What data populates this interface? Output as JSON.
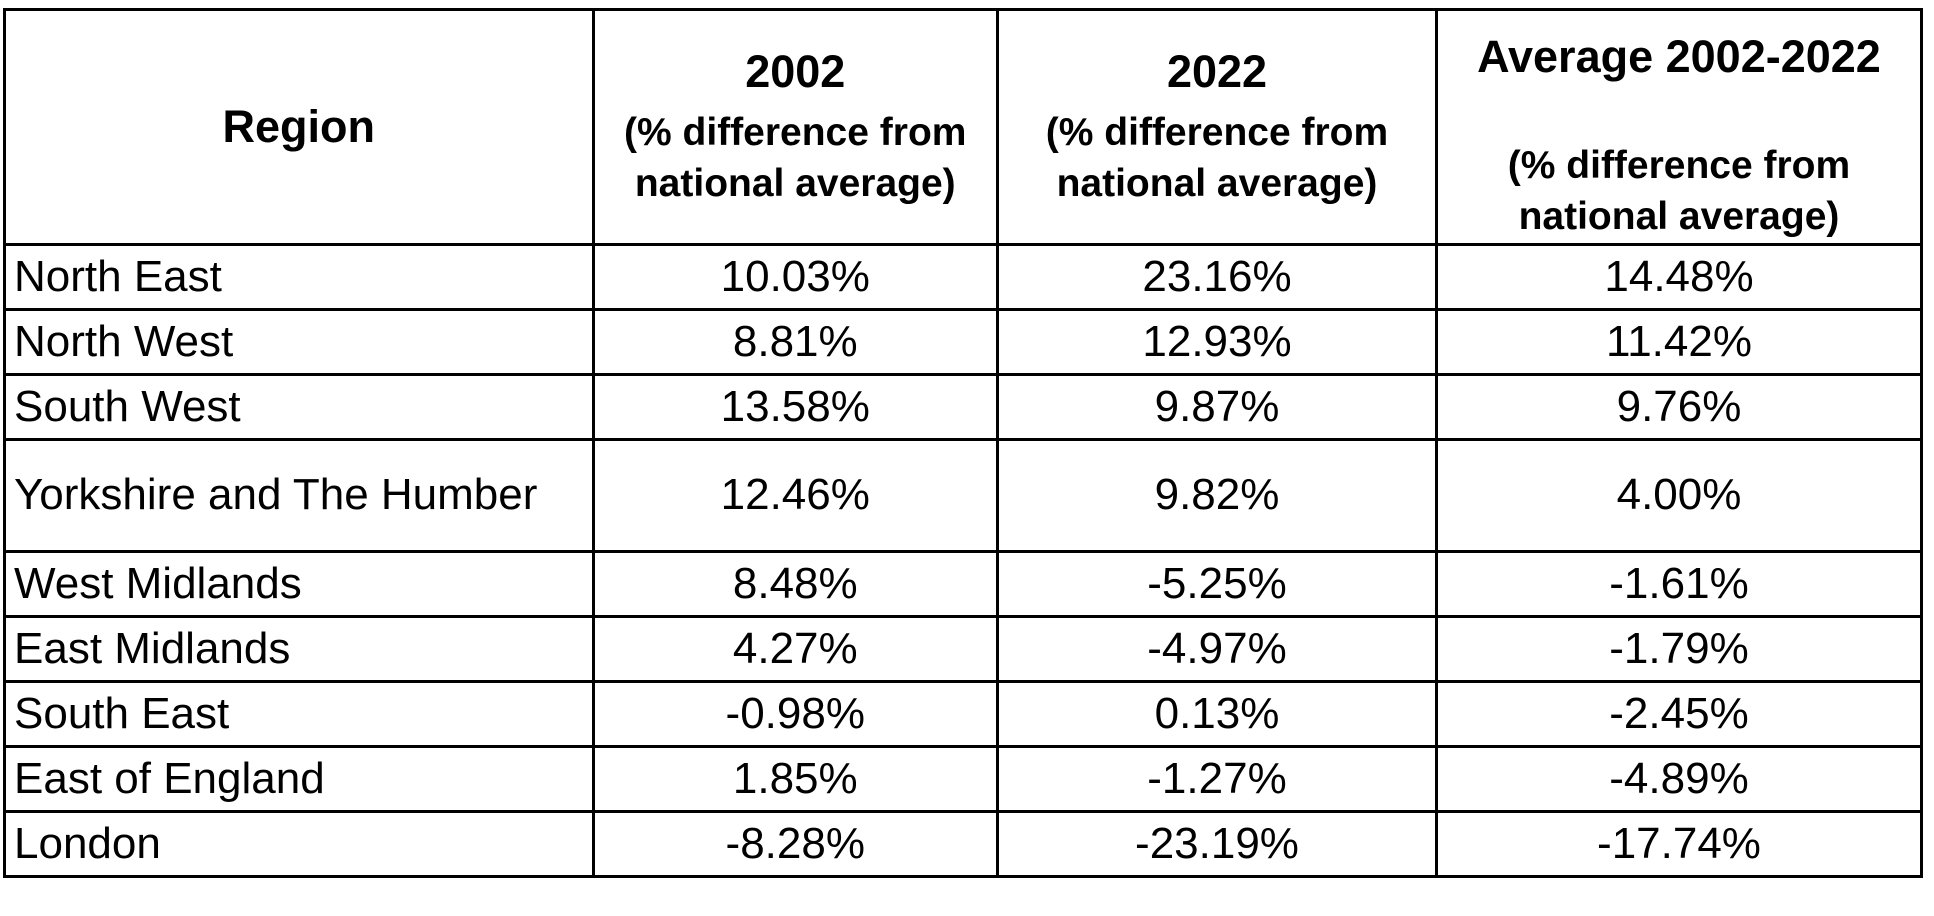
{
  "table": {
    "header": {
      "region_label": "Region",
      "col_2002_title": "2002",
      "col_2002_subtitle": "(% difference from national average)",
      "col_2022_title": "2022",
      "col_2022_subtitle": "(% difference from national average)",
      "col_avg_title": "Average 2002-2022",
      "col_avg_subtitle": "(% difference from national average)"
    },
    "rows": [
      {
        "region": "North East",
        "y2002": "10.03%",
        "y2022": "23.16%",
        "avg": "14.48%"
      },
      {
        "region": "North West",
        "y2002": "8.81%",
        "y2022": "12.93%",
        "avg": "11.42%"
      },
      {
        "region": "South West",
        "y2002": "13.58%",
        "y2022": "9.87%",
        "avg": "9.76%"
      },
      {
        "region": "Yorkshire and The Humber",
        "y2002": "12.46%",
        "y2022": "9.82%",
        "avg": "4.00%"
      },
      {
        "region": "West Midlands",
        "y2002": "8.48%",
        "y2022": "-5.25%",
        "avg": "-1.61%"
      },
      {
        "region": "East Midlands",
        "y2002": "4.27%",
        "y2022": "-4.97%",
        "avg": "-1.79%"
      },
      {
        "region": "South East",
        "y2002": "-0.98%",
        "y2022": "0.13%",
        "avg": "-2.45%"
      },
      {
        "region": "East of England",
        "y2002": "1.85%",
        "y2022": "-1.27%",
        "avg": "-4.89%"
      },
      {
        "region": "London",
        "y2002": "-8.28%",
        "y2022": "-23.19%",
        "avg": "-17.74%"
      }
    ]
  },
  "colors": {
    "border": "#000000",
    "text": "#000000",
    "background": "#ffffff"
  },
  "chart_data": {
    "type": "table",
    "columns": [
      "Region",
      "2002 (% difference from national average)",
      "2022 (% difference from national average)",
      "Average 2002-2022 (% difference from national average)"
    ],
    "rows": [
      [
        "North East",
        10.03,
        23.16,
        14.48
      ],
      [
        "North West",
        8.81,
        12.93,
        11.42
      ],
      [
        "South West",
        13.58,
        9.87,
        9.76
      ],
      [
        "Yorkshire and The Humber",
        12.46,
        9.82,
        4.0
      ],
      [
        "West Midlands",
        8.48,
        -5.25,
        -1.61
      ],
      [
        "East Midlands",
        4.27,
        -4.97,
        -1.79
      ],
      [
        "South East",
        -0.98,
        0.13,
        -2.45
      ],
      [
        "East of England",
        1.85,
        -1.27,
        -4.89
      ],
      [
        "London",
        -8.28,
        -23.19,
        -17.74
      ]
    ],
    "units": "%"
  }
}
